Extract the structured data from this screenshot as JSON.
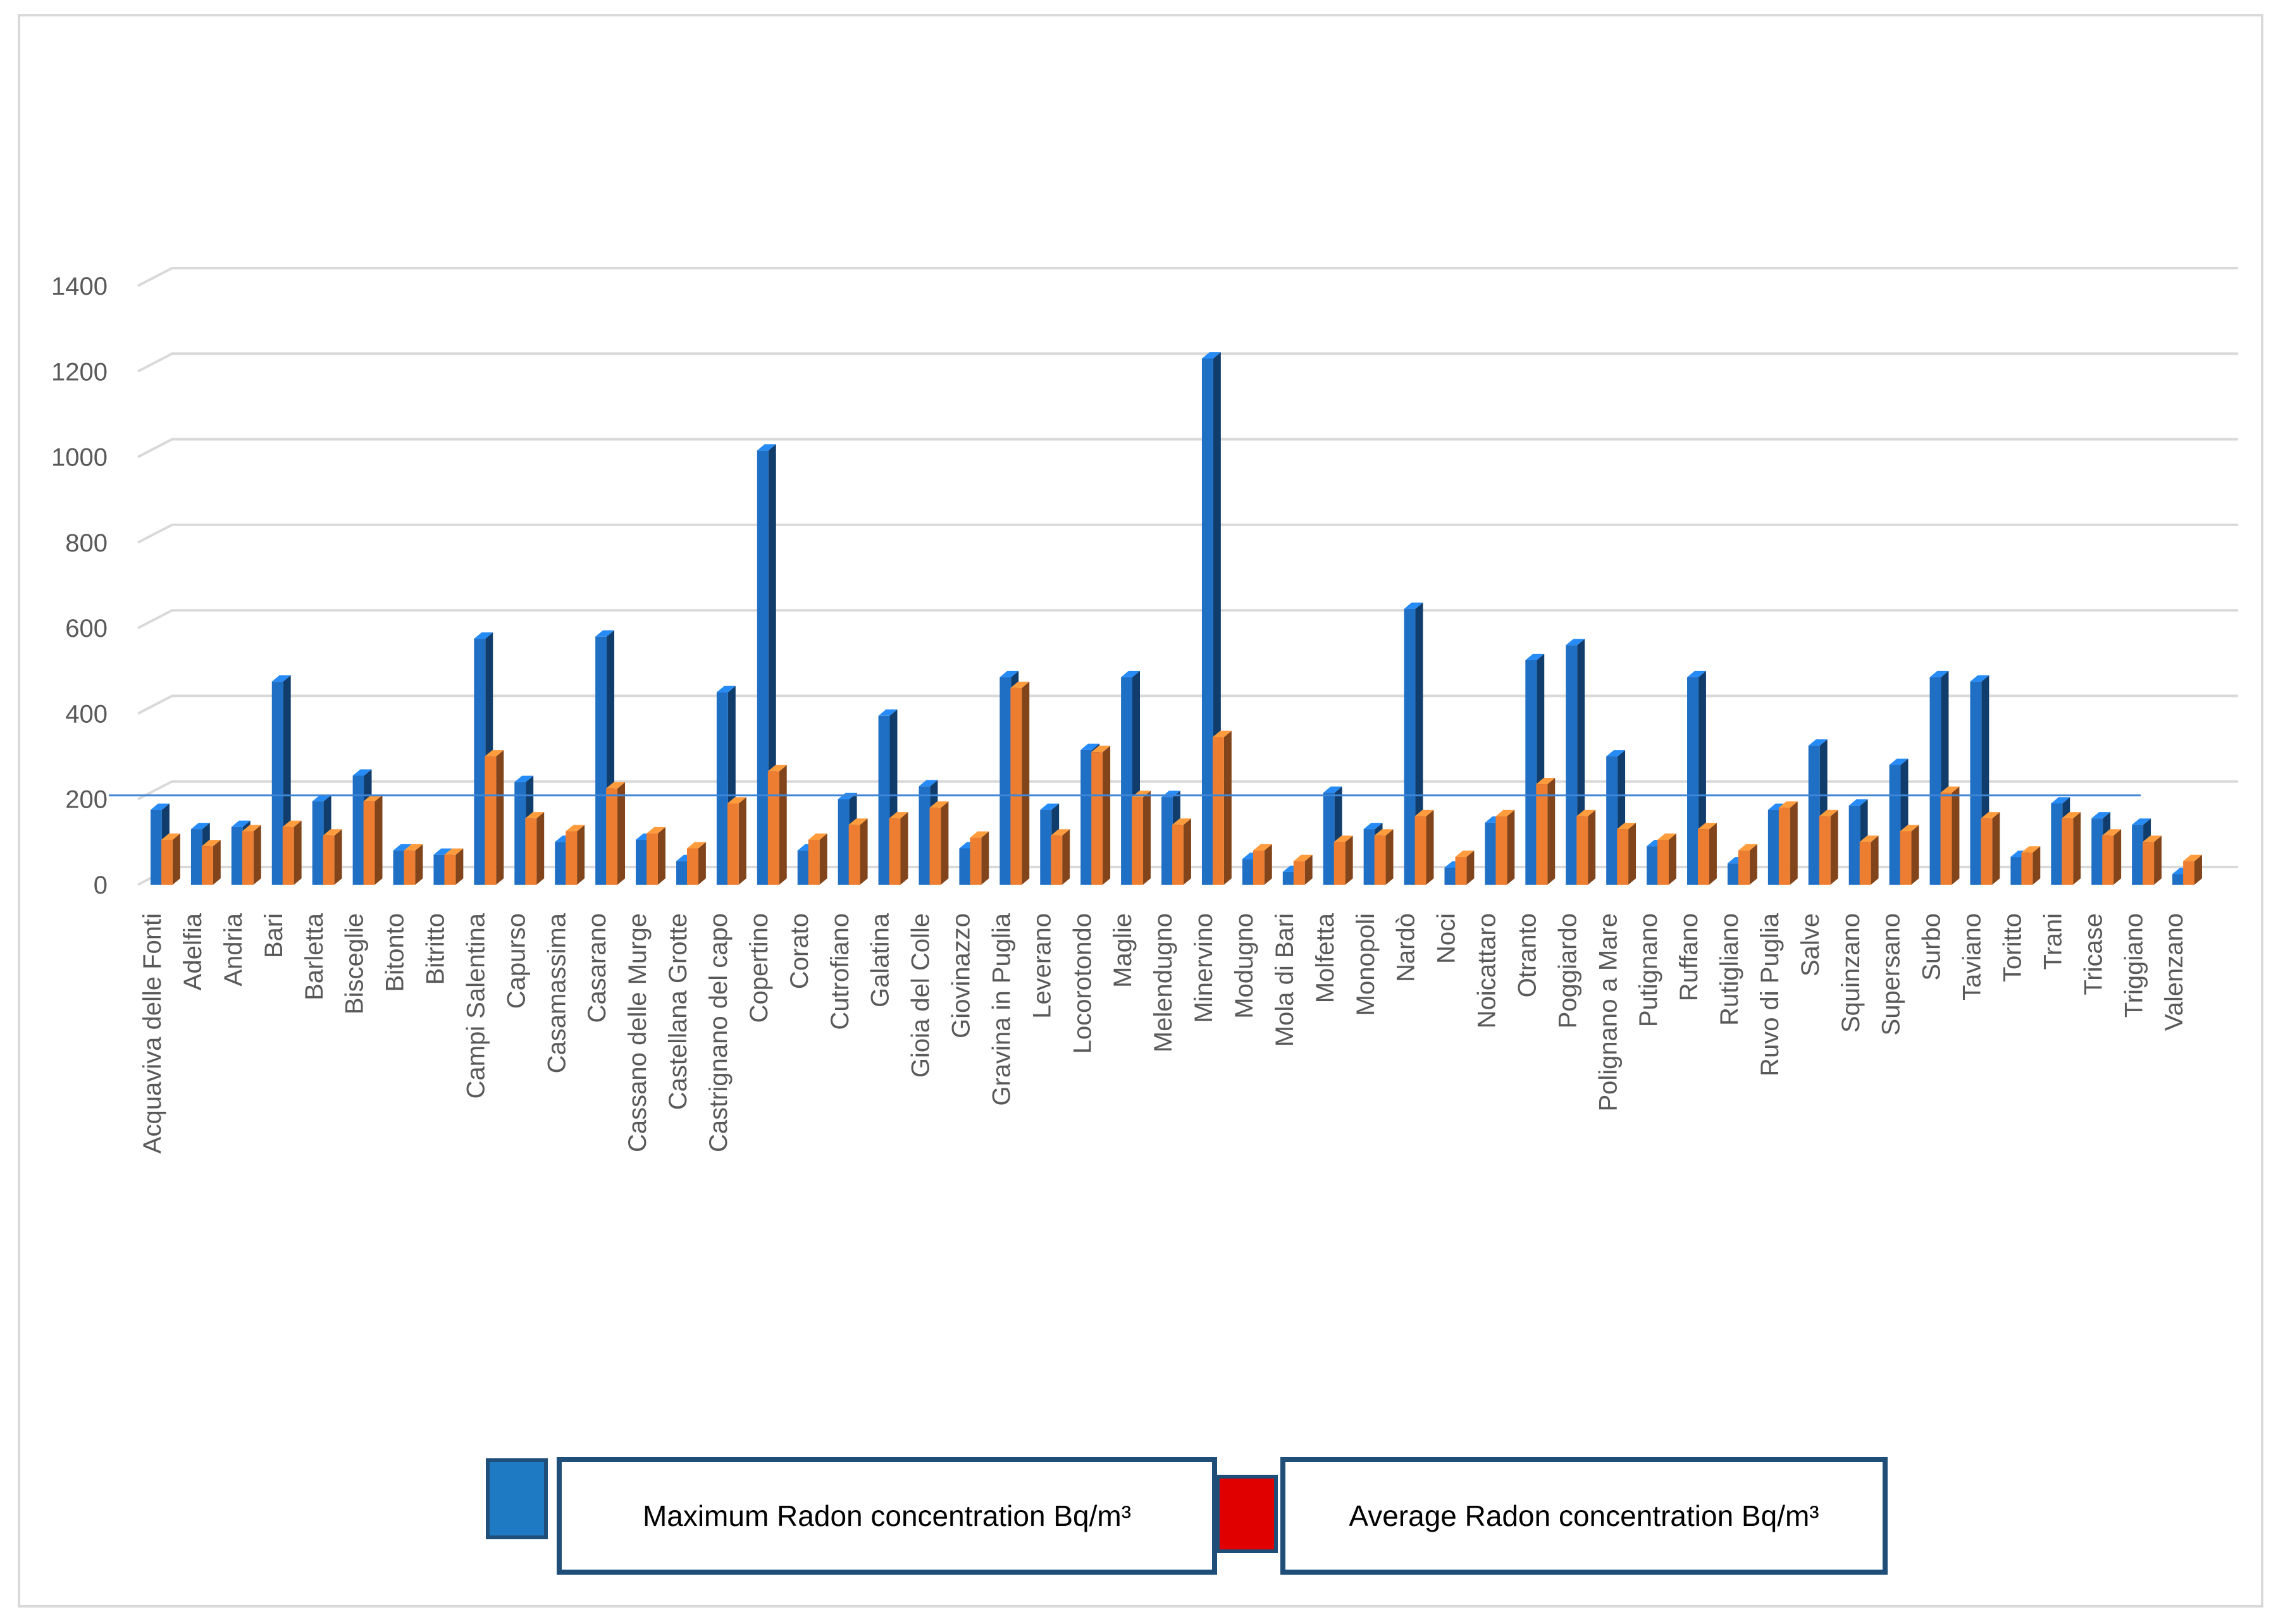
{
  "chart_data": {
    "type": "bar",
    "categories": [
      "Acquaviva delle Fonti",
      "Adelfia",
      "Andria",
      "Bari",
      "Barletta",
      "Bisceglie",
      "Bitonto",
      "Bitritto",
      "Campi Salentina",
      "Capurso",
      "Casamassima",
      "Casarano",
      "Cassano delle Murge",
      "Castellana Grotte",
      "Castrignano del capo",
      "Copertino",
      "Corato",
      "Cutrofiano",
      "Galatina",
      "Gioia del Colle",
      "Giovinazzo",
      "Gravina in Puglia",
      "Leverano",
      "Locorotondo",
      "Maglie",
      "Melendugno",
      "Minervino",
      "Modugno",
      "Mola di Bari",
      "Molfetta",
      "Monopoli",
      "Nardò",
      "Noci",
      "Noicattaro",
      "Otranto",
      "Poggiardo",
      "Polignano a Mare",
      "Putignano",
      "Ruffano",
      "Rutigliano",
      "Ruvo di Puglia",
      "Salve",
      "Squinzano",
      "Supersano",
      "Surbo",
      "Taviano",
      "Toritto",
      "Trani",
      "Tricase",
      "Triggiano",
      "Valenzano"
    ],
    "series": [
      {
        "name": "Maximum Radon concentration Bq/m³",
        "color": "#1f6fc5",
        "values": [
          175,
          130,
          135,
          475,
          195,
          255,
          80,
          70,
          575,
          240,
          100,
          580,
          105,
          55,
          450,
          1015,
          80,
          200,
          395,
          230,
          85,
          485,
          175,
          315,
          485,
          205,
          1230,
          60,
          30,
          215,
          130,
          645,
          40,
          145,
          525,
          560,
          300,
          90,
          485,
          50,
          175,
          325,
          185,
          280,
          485,
          475,
          65,
          190,
          155,
          140,
          25
        ]
      },
      {
        "name": "Average Radon concentration Bq/m³",
        "color": "#ed7d31",
        "values": [
          105,
          90,
          125,
          135,
          115,
          195,
          80,
          70,
          300,
          155,
          125,
          225,
          120,
          85,
          190,
          265,
          105,
          140,
          155,
          180,
          110,
          460,
          115,
          310,
          205,
          140,
          345,
          80,
          55,
          100,
          115,
          160,
          65,
          160,
          235,
          160,
          130,
          105,
          130,
          80,
          180,
          160,
          100,
          125,
          215,
          155,
          75,
          155,
          115,
          100,
          55
        ]
      }
    ],
    "reference_line": 200,
    "ylim": [
      0,
      1400
    ],
    "yticks": [
      0,
      200,
      400,
      600,
      800,
      1000,
      1200,
      1400
    ],
    "grid": true,
    "legend_position": "bottom",
    "legend_labels": [
      "Maximum Radon concentration Bq/m³",
      "Average Radon concentration Bq/m³"
    ],
    "legend_swatch_colors": [
      "#1f7ac4",
      "#e00000"
    ]
  }
}
